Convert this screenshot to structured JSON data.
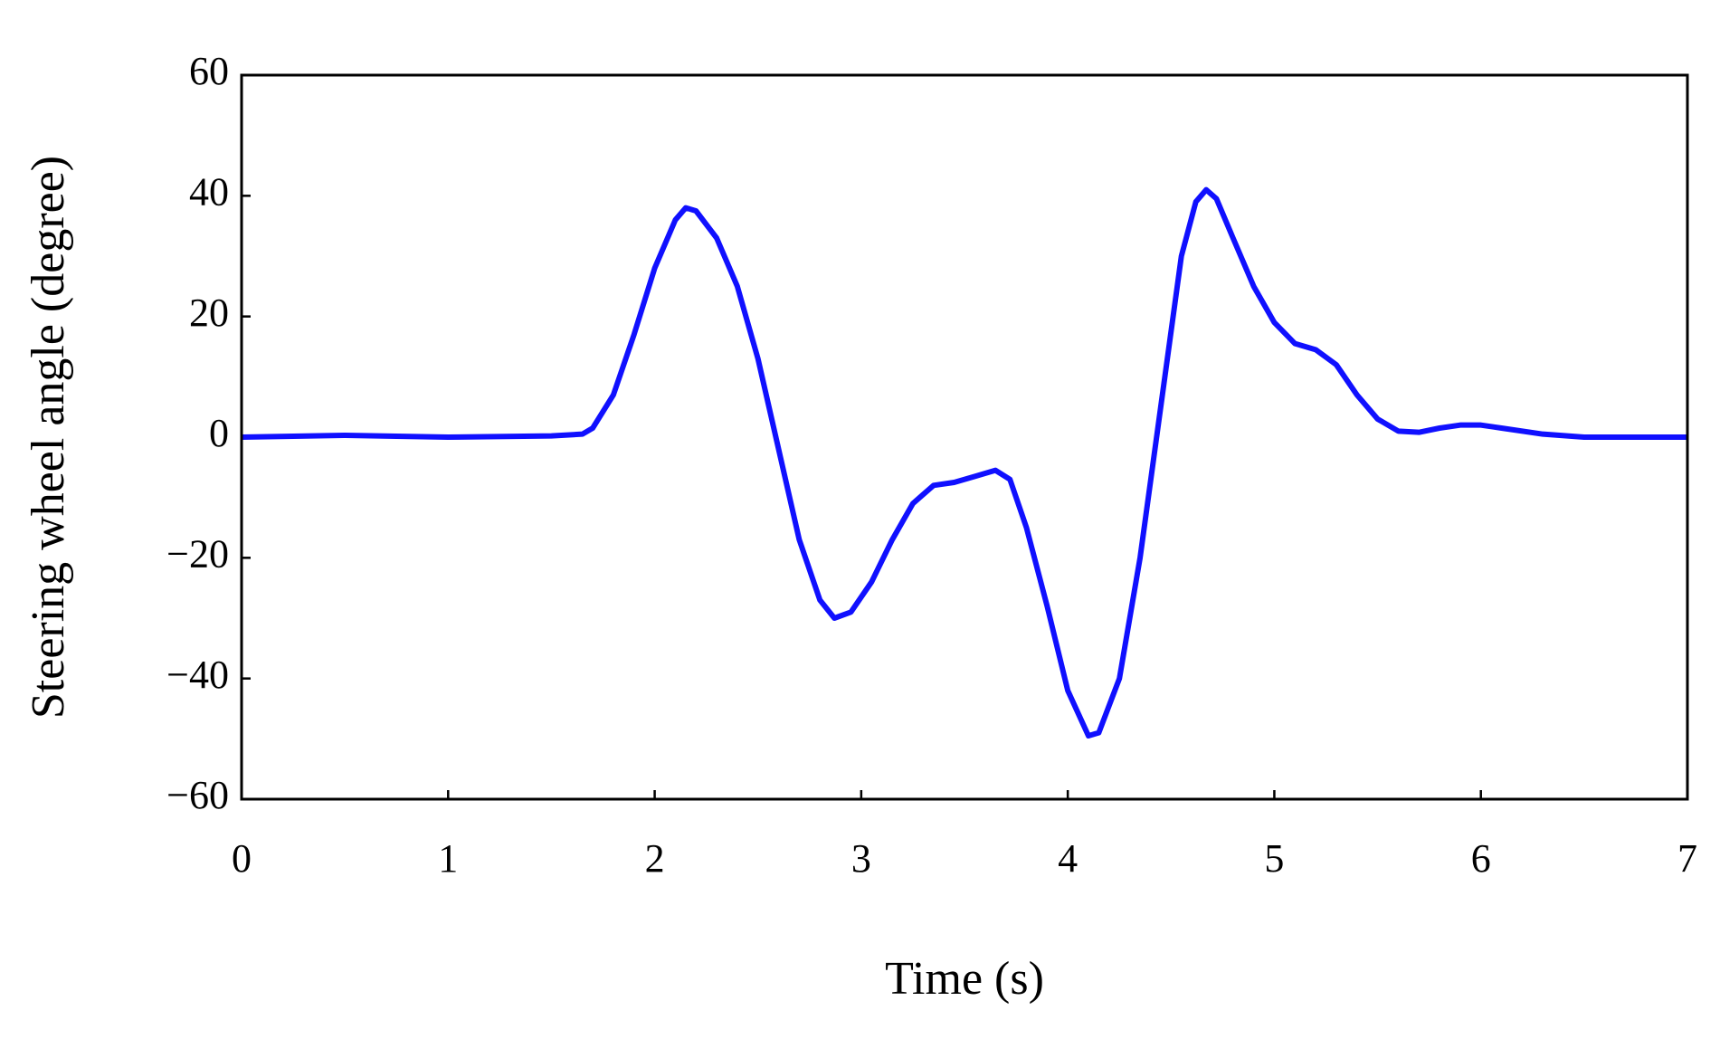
{
  "chart_data": {
    "type": "line",
    "xlabel": "Time (s)",
    "ylabel": "Steering wheel angle (degree)",
    "xlim": [
      0,
      7
    ],
    "xticks": [
      0,
      1,
      2,
      3,
      4,
      5,
      6,
      7
    ],
    "ylim": [
      -60,
      60
    ],
    "yticks": [
      {
        "value": -60,
        "label": "−60"
      },
      {
        "value": -40,
        "label": "−40"
      },
      {
        "value": -20,
        "label": "−20"
      },
      0,
      20,
      40,
      60
    ],
    "series": [
      {
        "color": "#1010ff",
        "x": [
          0,
          0.5,
          1,
          1.5,
          1.65,
          1.7,
          1.8,
          1.9,
          2.0,
          2.1,
          2.15,
          2.2,
          2.3,
          2.4,
          2.5,
          2.6,
          2.7,
          2.8,
          2.87,
          2.95,
          3.05,
          3.15,
          3.25,
          3.35,
          3.45,
          3.55,
          3.65,
          3.72,
          3.8,
          3.9,
          4.0,
          4.1,
          4.15,
          4.25,
          4.35,
          4.45,
          4.55,
          4.62,
          4.67,
          4.72,
          4.8,
          4.9,
          5.0,
          5.1,
          5.2,
          5.3,
          5.4,
          5.5,
          5.6,
          5.7,
          5.8,
          5.9,
          6.0,
          6.1,
          6.3,
          6.5,
          7
        ],
        "values": [
          0,
          0.3,
          0,
          0.2,
          0.5,
          1.5,
          7,
          17,
          28,
          36,
          38,
          37.5,
          33,
          25,
          13,
          -2,
          -17,
          -27,
          -30,
          -29,
          -24,
          -17,
          -11,
          -8,
          -7.5,
          -6.5,
          -5.5,
          -7,
          -15,
          -28,
          -42,
          -49.5,
          -49,
          -40,
          -20,
          5,
          30,
          39,
          41,
          39.5,
          33,
          25,
          19,
          15.5,
          14.5,
          12,
          7,
          3,
          1,
          0.8,
          1.5,
          2,
          2,
          1.5,
          0.5,
          0,
          0
        ]
      }
    ]
  }
}
